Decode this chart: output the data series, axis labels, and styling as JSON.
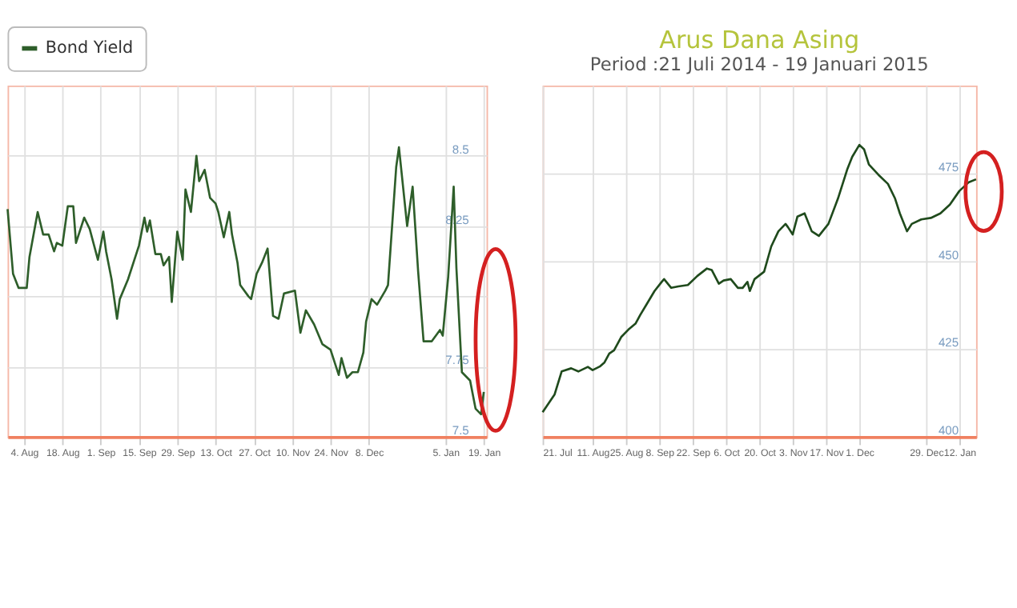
{
  "chart_data": [
    {
      "type": "line",
      "legend": "top",
      "grid": true,
      "xlim": [
        "2014-07-29",
        "2015-01-20"
      ],
      "ylim": [
        7.5,
        8.75
      ],
      "xticks": [
        {
          "value": "2014-08-04",
          "label": "4. Aug"
        },
        {
          "value": "2014-08-18",
          "label": "18. Aug"
        },
        {
          "value": "2014-09-01",
          "label": "1. Sep"
        },
        {
          "value": "2014-09-15",
          "label": "15. Sep"
        },
        {
          "value": "2014-09-29",
          "label": "29. Sep"
        },
        {
          "value": "2014-10-13",
          "label": "13. Oct"
        },
        {
          "value": "2014-10-27",
          "label": "27. Oct"
        },
        {
          "value": "2014-11-10",
          "label": "10. Nov"
        },
        {
          "value": "2014-11-24",
          "label": "24. Nov"
        },
        {
          "value": "2014-12-08",
          "label": "8. Dec"
        },
        {
          "value": "2015-01-05",
          "label": "5. Jan"
        },
        {
          "value": "2015-01-19",
          "label": "19. Jan"
        }
      ],
      "yticks": [
        7.5,
        7.75,
        {
          "value": 8,
          "label": null
        },
        8.25,
        8.5
      ],
      "series": [
        {
          "name": "Bond Yield",
          "color": "#2e5e2a",
          "x": [
            "2014-07-29",
            "2014-07-31",
            "2014-08-02",
            "2014-08-05",
            "2014-08-06",
            "2014-08-09",
            "2014-08-11",
            "2014-08-13",
            "2014-08-15",
            "2014-08-16",
            "2014-08-18",
            "2014-08-20",
            "2014-08-22",
            "2014-08-23",
            "2014-08-26",
            "2014-08-28",
            "2014-08-31",
            "2014-09-02",
            "2014-09-03",
            "2014-09-05",
            "2014-09-07",
            "2014-09-08",
            "2014-09-11",
            "2014-09-15",
            "2014-09-17",
            "2014-09-18",
            "2014-09-19",
            "2014-09-21",
            "2014-09-23",
            "2014-09-24",
            "2014-09-26",
            "2014-09-27",
            "2014-09-29",
            "2014-10-01",
            "2014-10-02",
            "2014-10-04",
            "2014-10-06",
            "2014-10-07",
            "2014-10-09",
            "2014-10-11",
            "2014-10-13",
            "2014-10-14",
            "2014-10-16",
            "2014-10-18",
            "2014-10-19",
            "2014-10-21",
            "2014-10-22",
            "2014-10-25",
            "2014-10-26",
            "2014-10-28",
            "2014-10-30",
            "2014-11-01",
            "2014-11-03",
            "2014-11-05",
            "2014-11-07",
            "2014-11-11",
            "2014-11-13",
            "2014-11-15",
            "2014-11-18",
            "2014-11-21",
            "2014-11-24",
            "2014-11-27",
            "2014-11-28",
            "2014-11-30",
            "2014-12-02",
            "2014-12-04",
            "2014-12-06",
            "2014-12-07",
            "2014-12-09",
            "2014-12-11",
            "2014-12-14",
            "2014-12-15",
            "2014-12-18",
            "2014-12-19",
            "2014-12-22",
            "2014-12-24",
            "2014-12-26",
            "2014-12-28",
            "2014-12-31",
            "2015-01-03",
            "2015-01-04",
            "2015-01-06",
            "2015-01-08",
            "2015-01-09",
            "2015-01-11",
            "2015-01-12",
            "2015-01-14",
            "2015-01-16",
            "2015-01-18",
            "2015-01-19"
          ],
          "values": [
            8.31,
            8.08,
            8.03,
            8.03,
            8.14,
            8.3,
            8.22,
            8.22,
            8.16,
            8.19,
            8.18,
            8.32,
            8.32,
            8.19,
            8.28,
            8.24,
            8.13,
            8.23,
            8.16,
            8.06,
            7.92,
            7.99,
            8.06,
            8.18,
            8.28,
            8.23,
            8.27,
            8.15,
            8.15,
            8.11,
            8.14,
            7.98,
            8.23,
            8.13,
            8.38,
            8.3,
            8.5,
            8.41,
            8.45,
            8.35,
            8.33,
            8.3,
            8.21,
            8.3,
            8.22,
            8.12,
            8.04,
            8.0,
            7.99,
            8.08,
            8.12,
            8.17,
            7.93,
            7.92,
            8.01,
            8.02,
            7.87,
            7.95,
            7.9,
            7.83,
            7.81,
            7.72,
            7.78,
            7.71,
            7.73,
            7.73,
            7.8,
            7.91,
            7.99,
            7.97,
            8.02,
            8.04,
            8.46,
            8.53,
            8.25,
            8.39,
            8.09,
            7.84,
            7.84,
            7.88,
            7.86,
            8.07,
            8.39,
            8.1,
            7.73,
            7.72,
            7.7,
            7.6,
            7.58,
            7.66
          ]
        }
      ]
    },
    {
      "type": "line",
      "title": "Arus Dana Asing",
      "subtitle": "Period :21 Juli 2014 - 19 Januari 2015",
      "grid": true,
      "xlim": [
        "2014-07-21",
        "2015-01-19"
      ],
      "ylim": [
        400,
        500
      ],
      "xticks": [
        {
          "value": "2014-07-21",
          "label": "21. Jul"
        },
        {
          "value": "2014-08-11",
          "label": "11. Aug"
        },
        {
          "value": "2014-08-25",
          "label": "25. Aug"
        },
        {
          "value": "2014-09-08",
          "label": "8. Sep"
        },
        {
          "value": "2014-09-22",
          "label": "22. Sep"
        },
        {
          "value": "2014-10-06",
          "label": "6. Oct"
        },
        {
          "value": "2014-10-20",
          "label": "20. Oct"
        },
        {
          "value": "2014-11-03",
          "label": "3. Nov"
        },
        {
          "value": "2014-11-17",
          "label": "17. Nov"
        },
        {
          "value": "2014-12-01",
          "label": "1. Dec"
        },
        {
          "value": "2014-12-29",
          "label": "29. Dec"
        },
        {
          "value": "2015-01-12",
          "label": "12. Jan"
        }
      ],
      "yticks": [
        400,
        425,
        450,
        475
      ],
      "series": [
        {
          "color": "#1f4a1c",
          "x": [
            "2014-07-21",
            "2014-07-26",
            "2014-07-29",
            "2014-08-02",
            "2014-08-05",
            "2014-08-09",
            "2014-08-11",
            "2014-08-14",
            "2014-08-16",
            "2014-08-18",
            "2014-08-20",
            "2014-08-23",
            "2014-08-26",
            "2014-08-29",
            "2014-08-31",
            "2014-09-03",
            "2014-09-06",
            "2014-09-09",
            "2014-09-10",
            "2014-09-13",
            "2014-09-16",
            "2014-09-20",
            "2014-09-24",
            "2014-09-28",
            "2014-09-30",
            "2014-10-03",
            "2014-10-05",
            "2014-10-08",
            "2014-10-11",
            "2014-10-13",
            "2014-10-15",
            "2014-10-16",
            "2014-10-18",
            "2014-10-22",
            "2014-10-25",
            "2014-10-28",
            "2014-10-31",
            "2014-11-01",
            "2014-11-03",
            "2014-11-05",
            "2014-11-08",
            "2014-11-11",
            "2014-11-14",
            "2014-11-18",
            "2014-11-22",
            "2014-11-26",
            "2014-11-28",
            "2014-12-01",
            "2014-12-03",
            "2014-12-05",
            "2014-12-09",
            "2014-12-13",
            "2014-12-16",
            "2014-12-18",
            "2014-12-21",
            "2014-12-23",
            "2014-12-27",
            "2014-12-31",
            "2015-01-04",
            "2015-01-08",
            "2015-01-12",
            "2015-01-16",
            "2015-01-19"
          ],
          "values": [
            407,
            412,
            418.6,
            419.5,
            418.6,
            419.9,
            419,
            420,
            421.2,
            423.7,
            424.6,
            428.4,
            430.5,
            432.2,
            434.7,
            438.1,
            441.5,
            444.1,
            444.9,
            442.4,
            442.8,
            443.2,
            445.8,
            447.9,
            447.5,
            443.6,
            444.5,
            444.9,
            442.4,
            442.4,
            444.1,
            441.5,
            444.9,
            447,
            454.2,
            458.5,
            460.6,
            459.7,
            457.6,
            462.7,
            463.6,
            458.5,
            457.2,
            460.6,
            467.8,
            476.3,
            479.7,
            483.1,
            481.8,
            477.5,
            474.6,
            472,
            467.8,
            463.6,
            458.5,
            460.6,
            461.9,
            462.3,
            463.6,
            466.1,
            470,
            472.5,
            473.3
          ]
        }
      ]
    }
  ]
}
